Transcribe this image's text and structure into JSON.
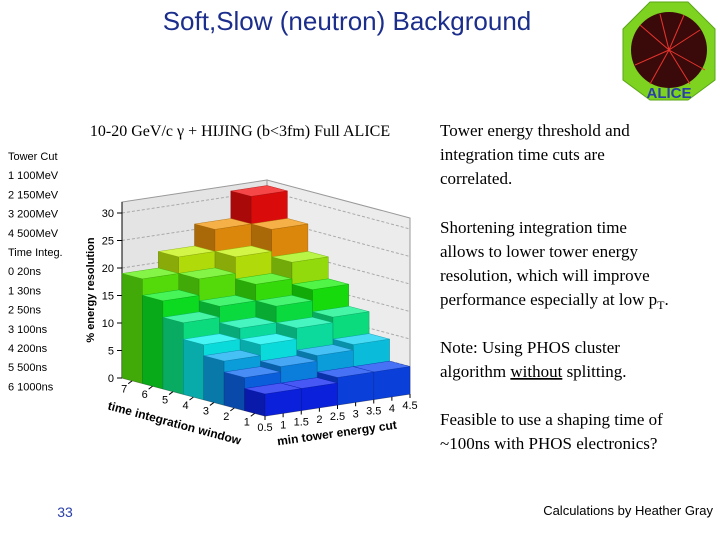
{
  "slide": {
    "title": "Soft,Slow (neutron) Background",
    "logo_text": "ALICE",
    "legend_lines": [
      "Tower Cut",
      "1 100MeV",
      "2 150MeV",
      "3 200MeV",
      "4 500MeV",
      "Time Integ.",
      "0 20ns",
      "1 30ns",
      "2 50ns",
      "3 100ns",
      "4 200ns",
      "5 500ns",
      "6 1000ns"
    ],
    "notes": [
      [
        "Tower energy threshold and",
        "integration time cuts are",
        "correlated."
      ],
      [
        "Shortening integration time",
        "allows to lower tower energy",
        "resolution, which will improve",
        [
          "performance especially at low p",
          "T",
          "."
        ]
      ],
      [
        "Note: Using PHOS cluster",
        [
          "algorithm ",
          "without",
          " splitting."
        ]
      ],
      [
        "Feasible to use a shaping time of",
        "~100ns with PHOS electronics?"
      ]
    ],
    "page_number": "33",
    "credit": "Calculations by Heather Gray"
  },
  "chart_data": {
    "type": "lego3d",
    "title": "10-20 GeV/c γ + HIJING (b<3fm) Full ALICE",
    "zlabel": "% energy resolution",
    "xlabel": "min tower energy cut",
    "ylabel": "time integration window",
    "x": [
      1,
      2,
      3,
      4
    ],
    "y": [
      1,
      2,
      3,
      4,
      5,
      6,
      7
    ],
    "xlim": [
      0.5,
      4.5
    ],
    "ylim": [
      0.5,
      7.5
    ],
    "zlim": [
      0,
      30
    ],
    "xticks": [
      0.5,
      1,
      1.5,
      2,
      2.5,
      3,
      3.5,
      4,
      4.5
    ],
    "yticks": [
      1,
      2,
      3,
      4,
      5,
      6,
      7
    ],
    "zticks": [
      0,
      5,
      10,
      15,
      20,
      25,
      30
    ],
    "values": [
      [
        4,
        4,
        5,
        5
      ],
      [
        6,
        7,
        8,
        9
      ],
      [
        8,
        10,
        12,
        13
      ],
      [
        10,
        12,
        15,
        17
      ],
      [
        13,
        15,
        18,
        21
      ],
      [
        16,
        19,
        22,
        26
      ],
      [
        19,
        22,
        26,
        31
      ]
    ],
    "grid": true
  }
}
